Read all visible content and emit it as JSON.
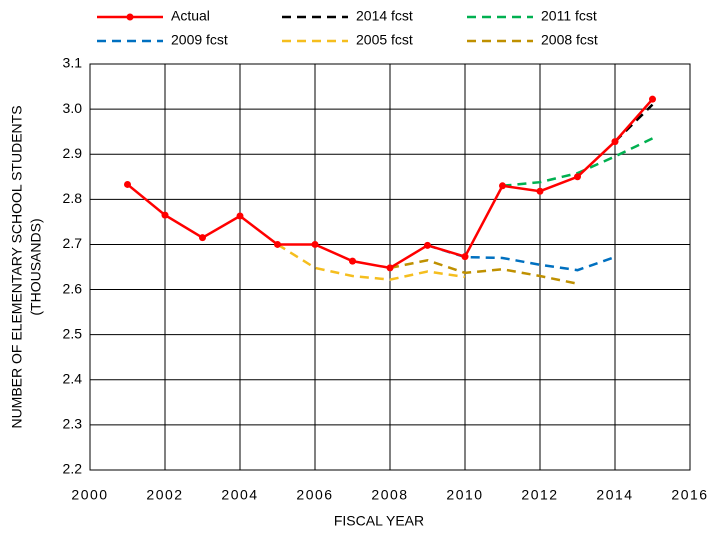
{
  "chart_data": {
    "type": "line",
    "x": [
      2001,
      2002,
      2003,
      2004,
      2005,
      2006,
      2007,
      2008,
      2009,
      2010,
      2011,
      2012,
      2013,
      2014,
      2015
    ],
    "series": [
      {
        "name": "Actual",
        "color": "#ff0000",
        "dashed": false,
        "markers": true,
        "values": [
          2.833,
          2.765,
          2.715,
          2.763,
          2.7,
          2.7,
          2.663,
          2.648,
          2.698,
          2.673,
          2.83,
          2.818,
          2.85,
          2.928,
          3.022
        ]
      },
      {
        "name": "2014 fcst",
        "color": "#000000",
        "dashed": true,
        "markers": false,
        "values": [
          null,
          null,
          null,
          null,
          null,
          null,
          null,
          null,
          null,
          null,
          null,
          null,
          null,
          2.928,
          3.01
        ]
      },
      {
        "name": "2011 fcst",
        "color": "#00b050",
        "dashed": true,
        "markers": false,
        "values": [
          null,
          null,
          null,
          null,
          null,
          null,
          null,
          null,
          null,
          null,
          2.83,
          2.838,
          2.858,
          2.895,
          2.935
        ]
      },
      {
        "name": "2009 fcst",
        "color": "#0070c0",
        "dashed": true,
        "markers": false,
        "values": [
          null,
          null,
          null,
          null,
          null,
          null,
          null,
          null,
          2.698,
          2.672,
          2.67,
          2.655,
          2.643,
          2.672,
          null
        ]
      },
      {
        "name": "2005 fcst",
        "color": "#f5be1e",
        "dashed": true,
        "markers": false,
        "values": [
          null,
          null,
          null,
          null,
          2.7,
          2.648,
          2.63,
          2.622,
          2.64,
          2.628,
          null,
          null,
          null,
          null,
          null
        ]
      },
      {
        "name": "2008 fcst",
        "color": "#bf9000",
        "dashed": true,
        "markers": false,
        "values": [
          null,
          null,
          null,
          null,
          null,
          null,
          null,
          2.648,
          2.665,
          2.637,
          2.645,
          2.63,
          2.613,
          null,
          null
        ]
      }
    ],
    "xlabel": "FISCAL YEAR",
    "ylabel": [
      "NUMBER OF ELEMENTARY SCHOOL STUDENTS",
      "(THOUSANDS)"
    ],
    "xlim": [
      2000,
      2016
    ],
    "xticks": [
      2000,
      2002,
      2004,
      2006,
      2008,
      2010,
      2012,
      2014,
      2016
    ],
    "ylim": [
      2.2,
      3.1
    ],
    "yticks": [
      2.2,
      2.3,
      2.4,
      2.5,
      2.6,
      2.7,
      2.8,
      2.9,
      {
        "value": 3.0,
        "label": "3.0"
      },
      3.1
    ],
    "grid": true,
    "legend": "top"
  }
}
